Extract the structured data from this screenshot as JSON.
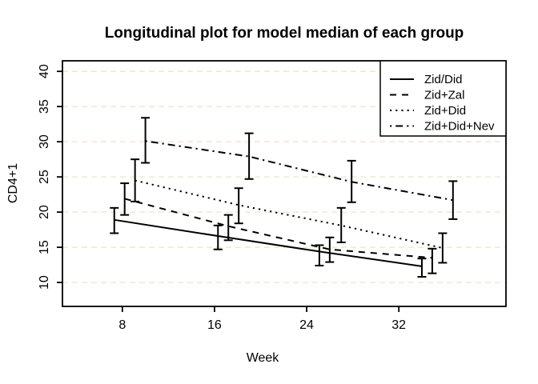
{
  "chart_data": {
    "type": "line",
    "title": "Longitudinal plot for model median of each group",
    "xlabel": "Week",
    "ylabel": "CD4+1",
    "x_ticks": [
      8,
      16,
      24,
      32
    ],
    "y_ticks": [
      10,
      15,
      20,
      25,
      30,
      35,
      40
    ],
    "xlim": [
      2.8,
      41.3
    ],
    "ylim": [
      6.6,
      41.5
    ],
    "grid": {
      "horizontal": true,
      "style": "dashed",
      "vertical": false
    },
    "legend": {
      "position": "top-right"
    },
    "error_bars": true,
    "series": [
      {
        "name": "Zid/Did",
        "style": "solid",
        "x": [
          7.3,
          16.3,
          25.1,
          34.0
        ],
        "median": [
          18.9,
          16.6,
          14.4,
          12.3
        ],
        "lower": [
          17.0,
          14.7,
          12.4,
          10.8
        ],
        "upper": [
          20.6,
          18.1,
          15.3,
          13.4
        ]
      },
      {
        "name": "Zid+Zal",
        "style": "dashed",
        "x": [
          8.2,
          17.2,
          26.0,
          34.9
        ],
        "median": [
          21.9,
          18.0,
          14.7,
          13.5
        ],
        "lower": [
          19.6,
          16.0,
          12.9,
          11.3
        ],
        "upper": [
          24.1,
          19.6,
          16.4,
          14.8
        ]
      },
      {
        "name": "Zid+Did",
        "style": "dotted",
        "x": [
          9.1,
          18.1,
          27.0,
          35.8
        ],
        "median": [
          24.5,
          21.0,
          18.1,
          14.9
        ],
        "lower": [
          21.5,
          18.4,
          15.7,
          12.8
        ],
        "upper": [
          27.5,
          23.4,
          20.6,
          17.0
        ]
      },
      {
        "name": "Zid+Did+Nev",
        "style": "dashdot",
        "x": [
          10.0,
          19.0,
          27.9,
          36.7
        ],
        "median": [
          30.1,
          27.9,
          24.3,
          21.7
        ],
        "lower": [
          27.0,
          24.7,
          21.4,
          19.0
        ],
        "upper": [
          33.4,
          31.2,
          27.3,
          24.4
        ]
      }
    ],
    "colors": {
      "foreground": "#000000",
      "grid": "#ece4ce",
      "background": "#ffffff"
    }
  }
}
